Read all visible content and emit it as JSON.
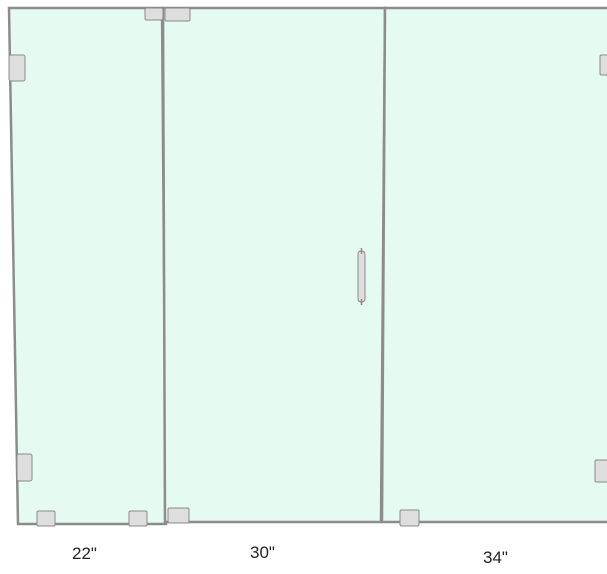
{
  "diagram": {
    "panels": [
      {
        "name": "left-fixed-panel",
        "width_label": "22\""
      },
      {
        "name": "center-door-panel",
        "width_label": "30\""
      },
      {
        "name": "right-fixed-panel",
        "width_label": "34\""
      }
    ],
    "colors": {
      "glass": "#e5fbf1",
      "frame": "#8c8c8c",
      "hardware_fill": "#dedede",
      "hardware_stroke": "#8a8a8a"
    }
  }
}
